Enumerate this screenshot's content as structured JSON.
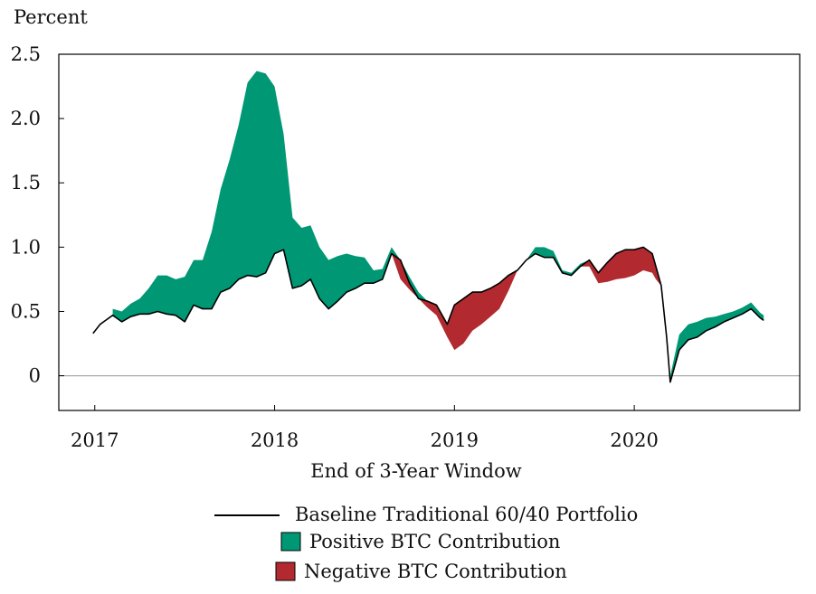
{
  "chart_data": {
    "type": "area",
    "ylabel": "Percent",
    "xlabel": "End of 3-Year Window",
    "ylim": [
      -0.27,
      2.5
    ],
    "yticks": [
      0,
      0.5,
      1.0,
      1.5,
      2.0,
      2.5
    ],
    "ytick_labels": [
      "0",
      "0.5",
      "1.0",
      "1.5",
      "2.0",
      "2.5"
    ],
    "xlim": [
      2016.8,
      2020.92
    ],
    "xticks": [
      2017,
      2018,
      2019,
      2020
    ],
    "xtick_labels": [
      "2017",
      "2018",
      "2019",
      "2020"
    ],
    "grid": false,
    "zero_line": true,
    "legend_position": "bottom-center",
    "colors": {
      "baseline": "#000000",
      "positive": "#009874",
      "negative": "#b22a2f",
      "zero_line": "#aaaaaa"
    },
    "series": [
      {
        "name": "Baseline Traditional 60/40 Portfolio",
        "x": [
          2016.99,
          2017.03,
          2017.06,
          2017.1,
          2017.15,
          2017.2,
          2017.25,
          2017.3,
          2017.35,
          2017.4,
          2017.45,
          2017.5,
          2017.55,
          2017.6,
          2017.65,
          2017.7,
          2017.75,
          2017.8,
          2017.85,
          2017.9,
          2017.95,
          2018.0,
          2018.05,
          2018.1,
          2018.15,
          2018.2,
          2018.25,
          2018.3,
          2018.35,
          2018.4,
          2018.45,
          2018.5,
          2018.55,
          2018.6,
          2018.65,
          2018.7,
          2018.75,
          2018.8,
          2018.85,
          2018.9,
          2018.96,
          2019.0,
          2019.05,
          2019.1,
          2019.15,
          2019.2,
          2019.25,
          2019.3,
          2019.35,
          2019.4,
          2019.45,
          2019.5,
          2019.55,
          2019.6,
          2019.65,
          2019.7,
          2019.75,
          2019.8,
          2019.85,
          2019.9,
          2019.95,
          2020.0,
          2020.05,
          2020.1,
          2020.12,
          2020.15,
          2020.18,
          2020.2,
          2020.25,
          2020.3,
          2020.35,
          2020.4,
          2020.45,
          2020.5,
          2020.55,
          2020.6,
          2020.65,
          2020.7,
          2020.72
        ],
        "values": [
          0.33,
          0.4,
          0.43,
          0.47,
          0.42,
          0.46,
          0.48,
          0.48,
          0.5,
          0.48,
          0.47,
          0.42,
          0.55,
          0.52,
          0.52,
          0.65,
          0.68,
          0.75,
          0.78,
          0.77,
          0.8,
          0.95,
          0.98,
          0.68,
          0.7,
          0.75,
          0.6,
          0.52,
          0.58,
          0.65,
          0.68,
          0.72,
          0.72,
          0.75,
          0.95,
          0.9,
          0.72,
          0.6,
          0.58,
          0.55,
          0.4,
          0.55,
          0.6,
          0.65,
          0.65,
          0.68,
          0.72,
          0.78,
          0.82,
          0.9,
          0.95,
          0.92,
          0.92,
          0.8,
          0.78,
          0.85,
          0.9,
          0.8,
          0.88,
          0.95,
          0.98,
          0.98,
          1.0,
          0.95,
          0.85,
          0.7,
          0.3,
          -0.05,
          0.2,
          0.28,
          0.3,
          0.35,
          0.38,
          0.42,
          0.45,
          0.48,
          0.52,
          0.45,
          0.43
        ]
      },
      {
        "name": "Positive BTC Contribution",
        "x": [
          2017.1,
          2017.15,
          2017.2,
          2017.25,
          2017.3,
          2017.35,
          2017.4,
          2017.45,
          2017.5,
          2017.55,
          2017.6,
          2017.65,
          2017.7,
          2017.75,
          2017.8,
          2017.85,
          2017.9,
          2017.95,
          2018.0,
          2018.05,
          2018.1,
          2018.15,
          2018.2,
          2018.25,
          2018.3,
          2018.35,
          2018.4,
          2018.45,
          2018.5,
          2018.55,
          2018.6,
          2018.65,
          2018.7,
          2018.75,
          2018.8,
          2018.85,
          2018.9,
          2018.96,
          2019.0,
          2019.05,
          2019.1,
          2019.15,
          2019.2,
          2019.25,
          2019.3,
          2019.35,
          2019.4,
          2019.45,
          2019.5,
          2019.55,
          2019.6,
          2019.65,
          2019.7,
          2019.75,
          2019.8,
          2019.85,
          2019.9,
          2019.95,
          2020.0,
          2020.05,
          2020.1,
          2020.12,
          2020.15,
          2020.18,
          2020.2,
          2020.25,
          2020.3,
          2020.35,
          2020.4,
          2020.45,
          2020.5,
          2020.55,
          2020.6,
          2020.65,
          2020.7,
          2020.72
        ],
        "values": [
          0.05,
          0.08,
          0.1,
          0.12,
          0.2,
          0.28,
          0.3,
          0.28,
          0.35,
          0.35,
          0.38,
          0.6,
          0.8,
          1.0,
          1.2,
          1.5,
          1.6,
          1.55,
          1.3,
          0.9,
          0.55,
          0.45,
          0.42,
          0.4,
          0.38,
          0.35,
          0.3,
          0.25,
          0.2,
          0.1,
          0.08,
          0.05,
          0,
          0.05,
          0.05,
          0,
          0,
          0,
          0,
          0,
          0,
          0,
          0,
          0,
          0,
          0,
          0,
          0.05,
          0.08,
          0.05,
          0.02,
          0.02,
          0.02,
          0,
          0,
          0,
          0,
          0,
          0,
          0,
          0,
          0,
          0,
          0,
          0.05,
          0.12,
          0.12,
          0.12,
          0.1,
          0.08,
          0.06,
          0.05,
          0.05,
          0.05,
          0.04,
          0.04
        ]
      },
      {
        "name": "Negative BTC Contribution",
        "x": [
          2017.1,
          2017.15,
          2017.2,
          2017.25,
          2017.3,
          2017.35,
          2017.4,
          2017.45,
          2017.5,
          2017.55,
          2017.6,
          2017.65,
          2017.7,
          2017.75,
          2017.8,
          2017.85,
          2017.9,
          2017.95,
          2018.0,
          2018.05,
          2018.1,
          2018.15,
          2018.2,
          2018.25,
          2018.3,
          2018.35,
          2018.4,
          2018.45,
          2018.5,
          2018.55,
          2018.6,
          2018.65,
          2018.7,
          2018.75,
          2018.8,
          2018.85,
          2018.9,
          2018.96,
          2019.0,
          2019.05,
          2019.1,
          2019.15,
          2019.2,
          2019.25,
          2019.3,
          2019.35,
          2019.4,
          2019.45,
          2019.5,
          2019.55,
          2019.6,
          2019.65,
          2019.7,
          2019.75,
          2019.8,
          2019.85,
          2019.9,
          2019.95,
          2020.0,
          2020.05,
          2020.1,
          2020.12,
          2020.15,
          2020.18,
          2020.2,
          2020.25,
          2020.3,
          2020.35,
          2020.4,
          2020.45,
          2020.5,
          2020.55,
          2020.6,
          2020.65,
          2020.7,
          2020.72
        ],
        "values": [
          0,
          0,
          0,
          0,
          0,
          0,
          0,
          0,
          0,
          0,
          0,
          0,
          0,
          0,
          0,
          0,
          0,
          0,
          0,
          0,
          0,
          0,
          0,
          0,
          0,
          0,
          0,
          0,
          0,
          0,
          0,
          0,
          0.15,
          0.05,
          0,
          0.05,
          0.08,
          0.1,
          0.35,
          0.35,
          0.3,
          0.25,
          0.22,
          0.2,
          0.12,
          0,
          0,
          0,
          0,
          0,
          0,
          0,
          0,
          0.05,
          0.08,
          0.15,
          0.2,
          0.22,
          0.2,
          0.18,
          0.15,
          0.1,
          0,
          0,
          0,
          0,
          0,
          0,
          0,
          0,
          0,
          0,
          0,
          0,
          0,
          0
        ]
      }
    ]
  }
}
